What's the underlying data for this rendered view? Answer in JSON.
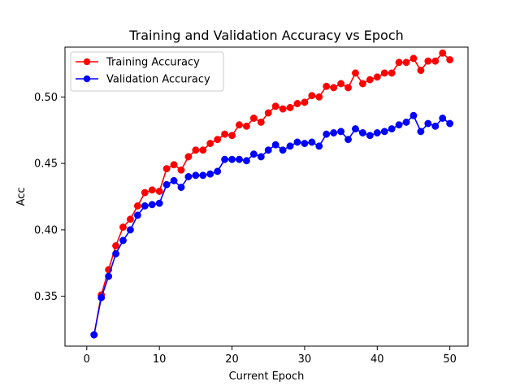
{
  "chart_data": {
    "type": "line",
    "title": "Training and Validation Accuracy vs Epoch",
    "xlabel": "Current Epoch",
    "ylabel": "Acc",
    "xlim": [
      -3,
      52.5
    ],
    "ylim": [
      0.3125,
      0.5375
    ],
    "xticks": [
      0,
      10,
      20,
      30,
      40,
      50
    ],
    "yticks": [
      0.35,
      0.4,
      0.45,
      0.5
    ],
    "ytick_labels": [
      "0.35",
      "0.40",
      "0.45",
      "0.50"
    ],
    "grid": false,
    "legend_position": "upper-left",
    "x": [
      1,
      2,
      3,
      4,
      5,
      6,
      7,
      8,
      9,
      10,
      11,
      12,
      13,
      14,
      15,
      16,
      17,
      18,
      19,
      20,
      21,
      22,
      23,
      24,
      25,
      26,
      27,
      28,
      29,
      30,
      31,
      32,
      33,
      34,
      35,
      36,
      37,
      38,
      39,
      40,
      41,
      42,
      43,
      44,
      45,
      46,
      47,
      48,
      49,
      50
    ],
    "series": [
      {
        "name": "Training Accuracy",
        "color": "#ff0000",
        "values": [
          0.321,
          0.351,
          0.37,
          0.388,
          0.402,
          0.408,
          0.418,
          0.428,
          0.43,
          0.429,
          0.446,
          0.449,
          0.445,
          0.455,
          0.46,
          0.46,
          0.465,
          0.468,
          0.472,
          0.471,
          0.479,
          0.478,
          0.484,
          0.481,
          0.488,
          0.493,
          0.491,
          0.492,
          0.495,
          0.496,
          0.501,
          0.5,
          0.508,
          0.507,
          0.51,
          0.507,
          0.518,
          0.51,
          0.513,
          0.515,
          0.518,
          0.518,
          0.526,
          0.526,
          0.529,
          0.52,
          0.527,
          0.527,
          0.533,
          0.528
        ]
      },
      {
        "name": "Validation Accuracy",
        "color": "#0000ff",
        "values": [
          0.321,
          0.349,
          0.365,
          0.382,
          0.392,
          0.4,
          0.411,
          0.418,
          0.419,
          0.42,
          0.434,
          0.437,
          0.432,
          0.44,
          0.441,
          0.441,
          0.442,
          0.444,
          0.453,
          0.453,
          0.453,
          0.452,
          0.457,
          0.455,
          0.46,
          0.464,
          0.46,
          0.463,
          0.466,
          0.465,
          0.466,
          0.463,
          0.472,
          0.473,
          0.474,
          0.468,
          0.476,
          0.473,
          0.471,
          0.473,
          0.474,
          0.476,
          0.479,
          0.481,
          0.486,
          0.474,
          0.48,
          0.478,
          0.484,
          0.48
        ]
      }
    ]
  }
}
